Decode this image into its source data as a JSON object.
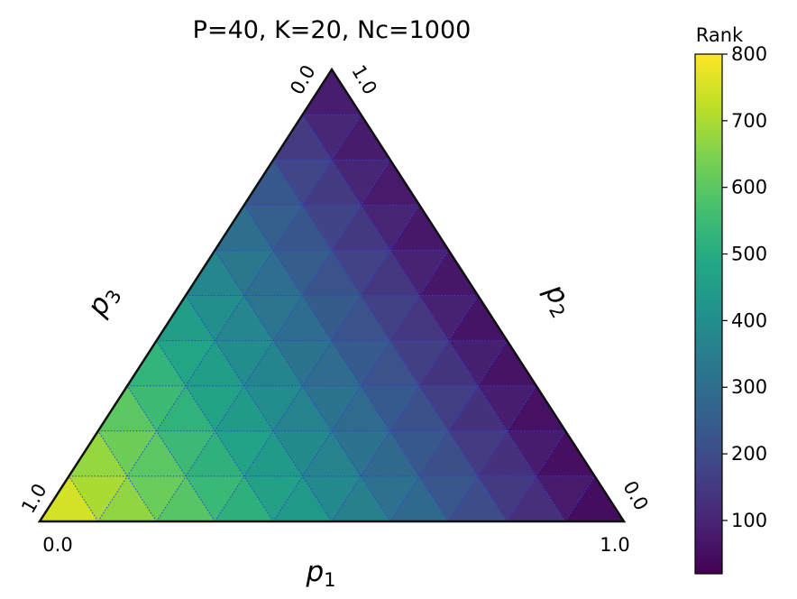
{
  "chart_data": {
    "type": "heatmap",
    "title": "P=40, K=20, Nc=1000",
    "corner_labels": {
      "left_bottom": "0.0",
      "left_side": "1.0",
      "right_bottom": "1.0",
      "right_side": "0.0",
      "top_left": "0.0",
      "top_right": "1.0"
    },
    "axes": {
      "p1_label": "p",
      "p1_sub": "1",
      "p2_label": "p",
      "p2_sub": "2",
      "p3_label": "p",
      "p3_sub": "3"
    },
    "grid_divisions": 10,
    "value_model": {
      "rank_at_p1_vertex": 20,
      "rank_at_p2_vertex": 60,
      "rank_at_p3_vertex": 800
    },
    "colorbar": {
      "title": "Rank",
      "min": 20,
      "max": 800,
      "ticks": [
        100,
        200,
        300,
        400,
        500,
        600,
        700,
        800
      ],
      "colormap": "viridis"
    },
    "grid_color": "#3340d8"
  }
}
